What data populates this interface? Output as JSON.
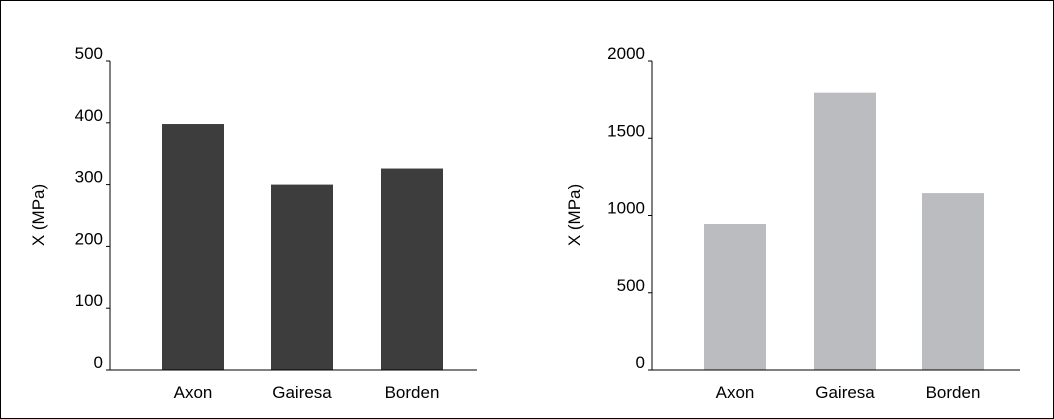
{
  "chart_data": [
    {
      "type": "bar",
      "categories": [
        "Axon",
        "Gairesa",
        "Borden"
      ],
      "values": [
        398,
        300,
        326
      ],
      "ylabel": "X (MPa)",
      "xlabel": "",
      "ylim": [
        0,
        500
      ],
      "yticks": [
        "0",
        "100",
        "200",
        "300",
        "400",
        "500"
      ],
      "bar_color": "#3d3d3d",
      "grid": false
    },
    {
      "type": "bar",
      "categories": [
        "Axon",
        "Gairesa",
        "Borden"
      ],
      "values": [
        945,
        1795,
        1145
      ],
      "ylabel": "X (MPa)",
      "xlabel": "",
      "ylim": [
        0,
        2000
      ],
      "yticks": [
        "0",
        "500",
        "1000",
        "1500",
        "2000"
      ],
      "bar_color": "#bbbcbf",
      "grid": false
    }
  ]
}
